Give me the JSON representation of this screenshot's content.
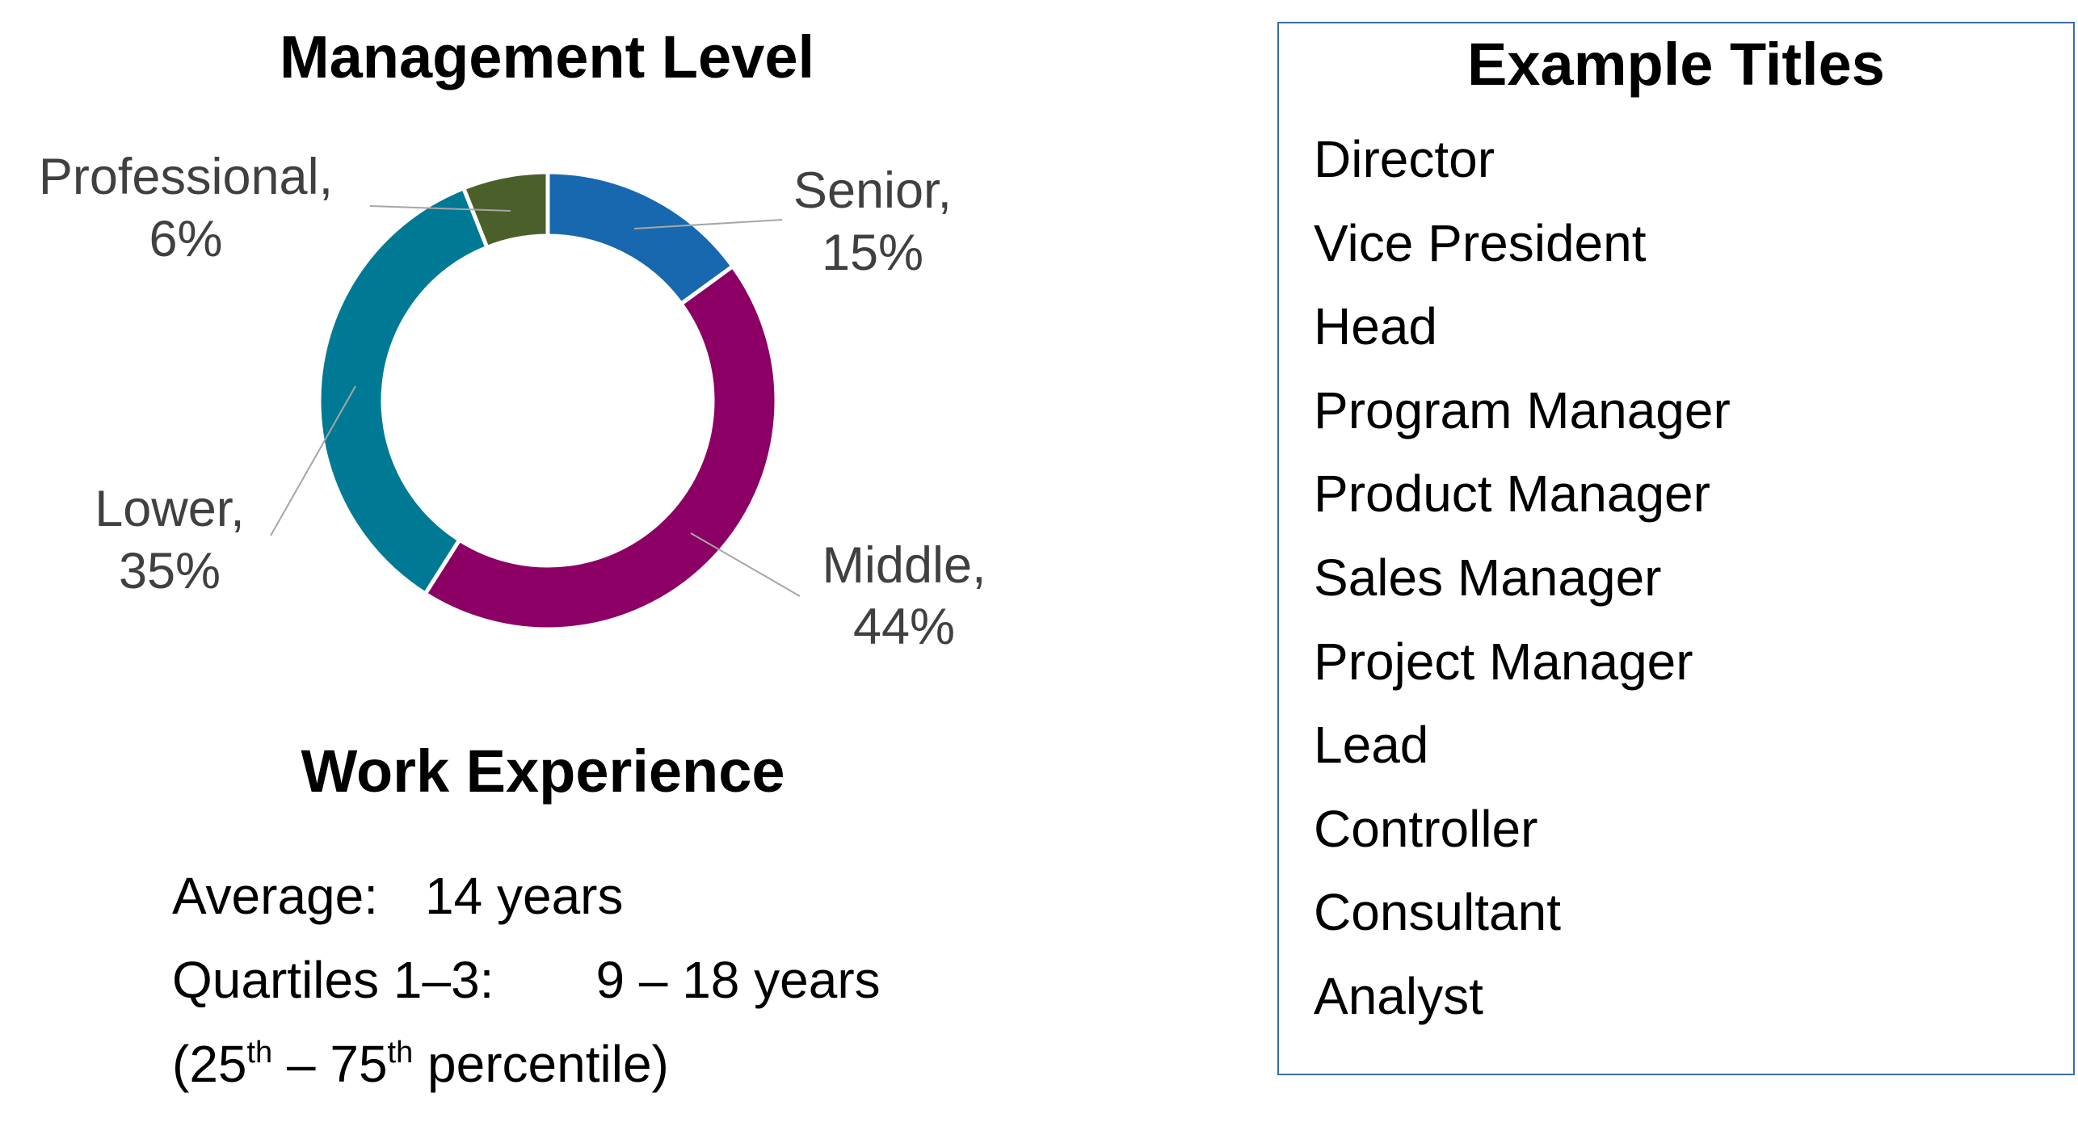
{
  "management_level": {
    "title": "Management Level"
  },
  "chart_data": {
    "type": "pie",
    "title": "Management Level",
    "style": "donut",
    "categories": [
      "Senior",
      "Middle",
      "Lower",
      "Professional"
    ],
    "values": [
      15,
      44,
      35,
      6
    ],
    "unit": "%",
    "labels": [
      "Senior,",
      "Middle,",
      "Lower,",
      "Professional,"
    ],
    "value_labels": [
      "15%",
      "44%",
      "35%",
      "6%"
    ],
    "colors": [
      "#1768ae",
      "#8c0065",
      "#007a94",
      "#4b5f2a"
    ]
  },
  "work_experience": {
    "title": "Work Experience",
    "average_label": "Average:",
    "average_value": "14 years",
    "quartiles_label": "Quartiles 1–3:",
    "quartiles_value": "9 – 18 years",
    "percentile_open": "(25",
    "percentile_sup1": "th",
    "percentile_mid": " – 75",
    "percentile_sup2": "th",
    "percentile_close": " percentile)"
  },
  "example_titles": {
    "heading": "Example Titles",
    "items": [
      "Director",
      "Vice President",
      "Head",
      "Program Manager",
      "Product Manager",
      "Sales Manager",
      "Project Manager",
      "Lead",
      "Controller",
      "Consultant",
      "Analyst"
    ]
  }
}
